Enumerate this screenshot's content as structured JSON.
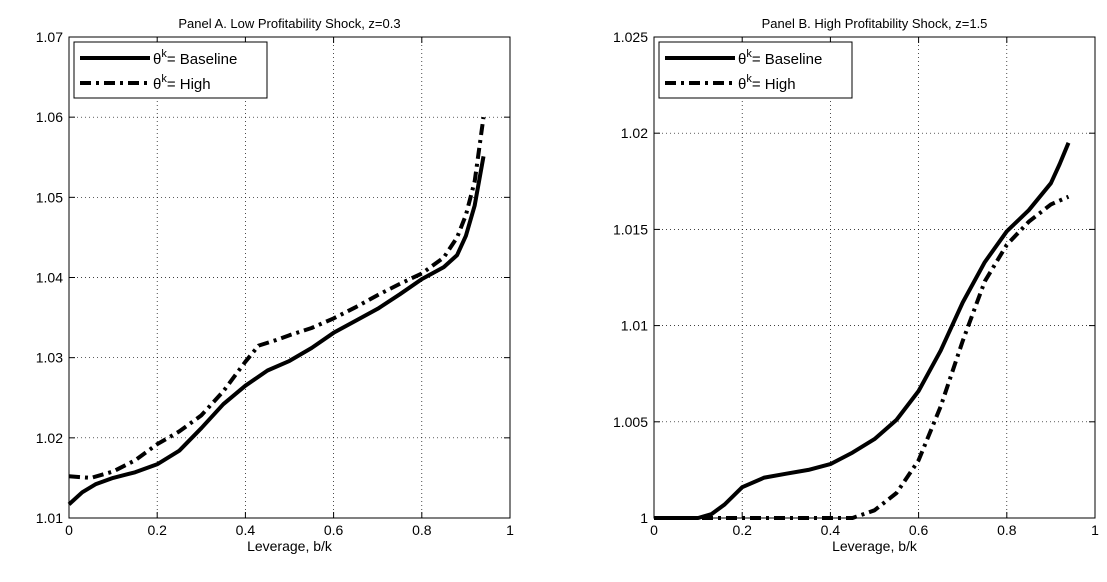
{
  "chart_data": [
    {
      "type": "line",
      "title": "Panel A. Low Profitability Shock, z=0.3",
      "xlabel": "Leverage, b/k",
      "ylabel": "",
      "xlim": [
        0,
        1
      ],
      "ylim": [
        1.01,
        1.07
      ],
      "xticks": [
        "0",
        "0.2",
        "0.4",
        "0.6",
        "0.8",
        "1"
      ],
      "yticks": [
        "1.01",
        "1.02",
        "1.03",
        "1.04",
        "1.05",
        "1.06",
        "1.07"
      ],
      "grid": true,
      "legend_position": "top-left",
      "series": [
        {
          "name": "= Baseline",
          "symbol": "θ",
          "superscript": "k",
          "style": "solid",
          "x": [
            0,
            0.03,
            0.06,
            0.1,
            0.15,
            0.2,
            0.25,
            0.3,
            0.35,
            0.4,
            0.45,
            0.5,
            0.55,
            0.6,
            0.65,
            0.7,
            0.75,
            0.8,
            0.85,
            0.88,
            0.9,
            0.92,
            0.94
          ],
          "y": [
            1.0117,
            1.0132,
            1.0142,
            1.015,
            1.0157,
            1.0167,
            1.0184,
            1.0212,
            1.0242,
            1.0265,
            1.0284,
            1.0296,
            1.0312,
            1.0331,
            1.0346,
            1.0361,
            1.0379,
            1.0398,
            1.0413,
            1.0428,
            1.0452,
            1.049,
            1.0551
          ]
        },
        {
          "name": "= High",
          "symbol": "θ",
          "superscript": "k",
          "style": "dashdot",
          "x": [
            0,
            0.05,
            0.1,
            0.15,
            0.2,
            0.25,
            0.3,
            0.35,
            0.4,
            0.43,
            0.47,
            0.5,
            0.55,
            0.6,
            0.65,
            0.7,
            0.75,
            0.8,
            0.85,
            0.88,
            0.9,
            0.92,
            0.94
          ],
          "y": [
            1.0152,
            1.015,
            1.0158,
            1.0172,
            1.0192,
            1.0208,
            1.0228,
            1.0258,
            1.0295,
            1.0315,
            1.0322,
            1.0328,
            1.0337,
            1.0349,
            1.0363,
            1.0378,
            1.0392,
            1.0405,
            1.0425,
            1.045,
            1.0478,
            1.052,
            1.06
          ]
        }
      ]
    },
    {
      "type": "line",
      "title": "Panel B. High Profitability Shock, z=1.5",
      "xlabel": "Leverage, b/k",
      "ylabel": "",
      "xlim": [
        0,
        1
      ],
      "ylim": [
        1,
        1.025
      ],
      "xticks": [
        "0",
        "0.2",
        "0.4",
        "0.6",
        "0.8",
        "1"
      ],
      "yticks": [
        "1",
        "1.005",
        "1.01",
        "1.015",
        "1.02",
        "1.025"
      ],
      "grid": true,
      "legend_position": "top-left",
      "series": [
        {
          "name": "= Baseline",
          "symbol": "θ",
          "superscript": "k",
          "style": "solid",
          "x": [
            0,
            0.05,
            0.1,
            0.13,
            0.16,
            0.2,
            0.25,
            0.3,
            0.35,
            0.4,
            0.45,
            0.5,
            0.55,
            0.6,
            0.65,
            0.7,
            0.75,
            0.8,
            0.85,
            0.9,
            0.92,
            0.94
          ],
          "y": [
            1.0,
            1.0,
            1.0,
            1.0002,
            1.0007,
            1.0016,
            1.0021,
            1.0023,
            1.0025,
            1.0028,
            1.0034,
            1.0041,
            1.0051,
            1.0066,
            1.0087,
            1.0112,
            1.0133,
            1.0149,
            1.016,
            1.0174,
            1.0184,
            1.0195
          ]
        },
        {
          "name": "= High",
          "symbol": "θ",
          "superscript": "k",
          "style": "dashdot",
          "x": [
            0,
            0.1,
            0.2,
            0.3,
            0.4,
            0.45,
            0.5,
            0.55,
            0.6,
            0.65,
            0.7,
            0.75,
            0.8,
            0.85,
            0.9,
            0.94
          ],
          "y": [
            1.0,
            1.0,
            1.0,
            1.0,
            1.0,
            1.0,
            1.0004,
            1.0013,
            1.003,
            1.0058,
            1.0092,
            1.0123,
            1.0142,
            1.0154,
            1.0163,
            1.0167
          ]
        }
      ]
    }
  ]
}
